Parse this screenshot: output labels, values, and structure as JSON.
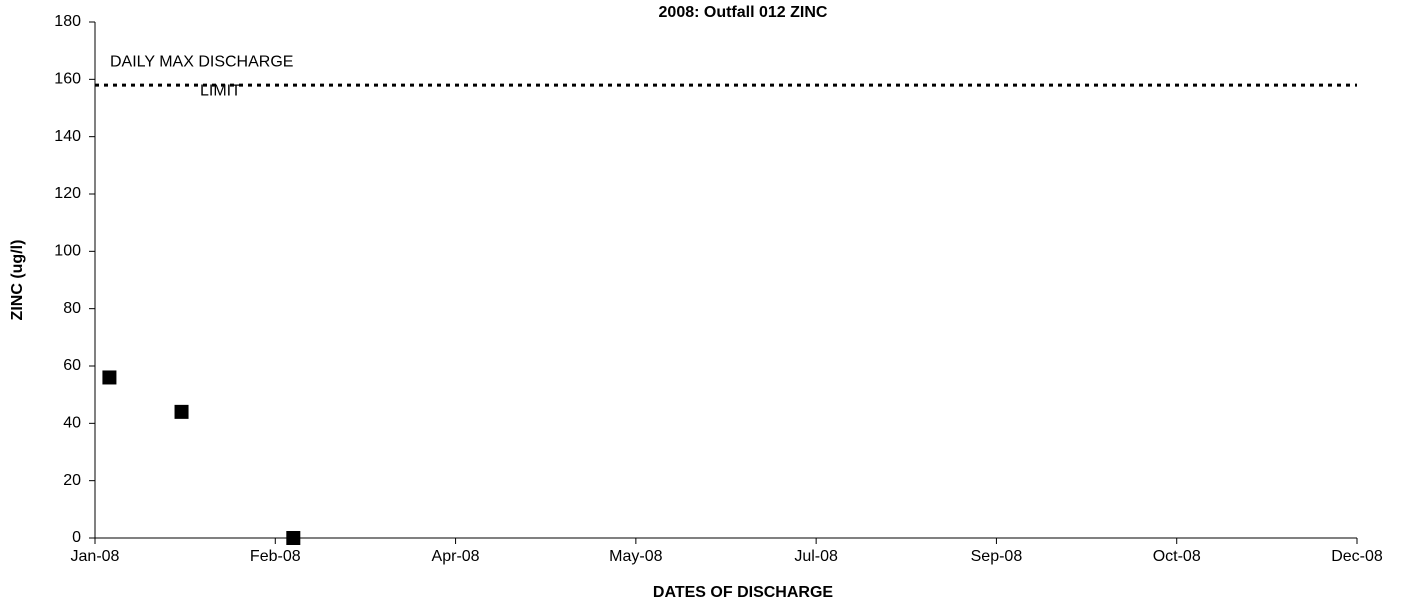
{
  "chart_data": {
    "type": "scatter",
    "title": "2008: Outfall 012 ZINC",
    "x_label": "DATES OF DISCHARGE",
    "y_label": "ZINC (ug/l)",
    "series": [
      {
        "name": "ZINC",
        "color": "#000000",
        "x": [
          39452,
          39472,
          39503
        ],
        "values": [
          56,
          44,
          0
        ]
      }
    ],
    "xlim": [
      39448,
      39798
    ],
    "xticks": [
      {
        "value": 39448,
        "label": "Jan-08"
      },
      {
        "value": 39498,
        "label": "Feb-08"
      },
      {
        "value": 39548,
        "label": "Apr-08"
      },
      {
        "value": 39598,
        "label": "May-08"
      },
      {
        "value": 39648,
        "label": "Jul-08"
      },
      {
        "value": 39698,
        "label": "Sep-08"
      },
      {
        "value": 39748,
        "label": "Oct-08"
      },
      {
        "value": 39798,
        "label": "Dec-08"
      }
    ],
    "ylim": [
      0,
      180
    ],
    "yticks": [
      0,
      20,
      40,
      60,
      80,
      100,
      120,
      140,
      160,
      180
    ],
    "limit": {
      "value": 158,
      "label": [
        "DAILY MAX DISCHARGE",
        "LIMIT"
      ]
    },
    "grid": false
  }
}
